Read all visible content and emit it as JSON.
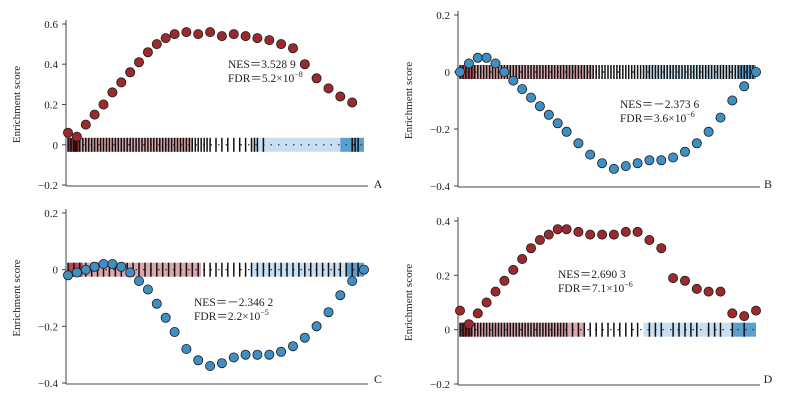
{
  "figure": {
    "panels": [
      {
        "panel_label": "A",
        "ylabel": "Enrichment score",
        "ylim": [
          -0.2,
          0.6
        ],
        "yticks": [
          -0.2,
          0,
          0.2,
          0.4,
          0.6
        ],
        "ytick_labels": [
          "−0.2",
          "0",
          "0.2",
          "0.4",
          "0.6"
        ],
        "nes_label": "NES＝3.528 9",
        "fdr_label": "FDR＝5.2×10",
        "fdr_exponent": "−8"
      },
      {
        "panel_label": "B",
        "ylabel": "Enrichment score",
        "ylim": [
          -0.4,
          0.2
        ],
        "yticks": [
          -0.4,
          -0.2,
          0,
          0.2
        ],
        "ytick_labels": [
          "−0.4",
          "−0.2",
          "0",
          "0.2"
        ],
        "nes_label": "NES＝－2.373 6",
        "fdr_label": "FDR＝3.6×10",
        "fdr_exponent": "−6"
      },
      {
        "panel_label": "C",
        "ylabel": "Enrichment score",
        "ylim": [
          -0.4,
          0.2
        ],
        "yticks": [
          -0.4,
          -0.2,
          0,
          0.2
        ],
        "ytick_labels": [
          "−0.4",
          "−0.2",
          "0",
          "0.2"
        ],
        "nes_label": "NES＝－2.346 2",
        "fdr_label": "FDR＝2.2×10",
        "fdr_exponent": "−5"
      },
      {
        "panel_label": "D",
        "ylabel": "Enrichment score",
        "ylim": [
          -0.2,
          0.4
        ],
        "yticks": [
          -0.2,
          0,
          0.2,
          0.4
        ],
        "ytick_labels": [
          "−0.2",
          "0",
          "0.2",
          "0.4"
        ],
        "nes_label": "NES＝2.690 3",
        "fdr_label": "FDR＝7.1×10",
        "fdr_exponent": "−6"
      }
    ]
  },
  "chart_data": [
    {
      "type": "scatter",
      "title": "",
      "xlabel": "",
      "ylabel": "Enrichment score",
      "ylim": [
        -0.2,
        0.6
      ],
      "x_range": [
        0,
        100
      ],
      "direction": "positive",
      "series": [
        {
          "name": "running enrichment score",
          "x": [
            0,
            3,
            6,
            9,
            12,
            15,
            18,
            21,
            24,
            27,
            30,
            33,
            36,
            40,
            44,
            48,
            52,
            56,
            60,
            64,
            68,
            72,
            76,
            80,
            84,
            88,
            92,
            96
          ],
          "y": [
            0.06,
            0.04,
            0.1,
            0.15,
            0.2,
            0.26,
            0.31,
            0.36,
            0.41,
            0.46,
            0.5,
            0.53,
            0.55,
            0.56,
            0.55,
            0.56,
            0.54,
            0.55,
            0.54,
            0.53,
            0.52,
            0.5,
            0.48,
            0.4,
            0.33,
            0.28,
            0.24,
            0.21
          ],
          "color": "#9b2a2c"
        }
      ],
      "hit_positions": [
        0,
        1,
        2,
        2.5,
        3,
        4,
        5,
        6,
        7,
        8,
        9,
        10,
        11,
        12,
        13,
        14,
        15,
        16,
        17,
        18,
        19,
        20,
        21,
        22,
        23,
        24,
        25,
        26,
        27,
        28,
        29,
        30,
        31,
        32,
        33,
        34,
        35,
        36,
        37,
        38,
        39,
        40,
        41,
        42,
        43,
        44,
        45,
        46,
        47,
        48,
        50,
        52,
        54,
        56,
        58,
        60,
        62,
        63,
        64,
        66,
        96,
        97,
        98
      ],
      "annotation": {
        "text": "NES＝3.528 9 / FDR＝5.2×10−8"
      }
    },
    {
      "type": "scatter",
      "title": "",
      "xlabel": "",
      "ylabel": "Enrichment score",
      "ylim": [
        -0.4,
        0.2
      ],
      "x_range": [
        0,
        100
      ],
      "direction": "negative",
      "series": [
        {
          "name": "running enrichment score",
          "x": [
            0,
            3,
            6,
            9,
            12,
            15,
            18,
            21,
            24,
            27,
            30,
            33,
            36,
            40,
            44,
            48,
            52,
            56,
            60,
            64,
            68,
            72,
            76,
            80,
            84,
            88,
            92,
            96,
            100
          ],
          "y": [
            0.0,
            0.03,
            0.05,
            0.05,
            0.03,
            0.0,
            -0.03,
            -0.06,
            -0.09,
            -0.12,
            -0.15,
            -0.18,
            -0.21,
            -0.25,
            -0.29,
            -0.32,
            -0.34,
            -0.33,
            -0.32,
            -0.31,
            -0.31,
            -0.3,
            -0.28,
            -0.25,
            -0.21,
            -0.16,
            -0.1,
            -0.05,
            0.0
          ],
          "color": "#3f8fc4"
        }
      ],
      "hit_positions": [
        0,
        1,
        2,
        3,
        4,
        5,
        6,
        7,
        8,
        9,
        10,
        11,
        12,
        13,
        14,
        15,
        16,
        17,
        18,
        19,
        20,
        21,
        22,
        23,
        24,
        25,
        26,
        27,
        28,
        29,
        30,
        31,
        32,
        33,
        34,
        35,
        36,
        37,
        38,
        39,
        40,
        41,
        42,
        43,
        44,
        45,
        46,
        47,
        48,
        49,
        50,
        51,
        52,
        53,
        54,
        55,
        56,
        57,
        58,
        59,
        60,
        61,
        62,
        63,
        64,
        65,
        66,
        67,
        68,
        69,
        70,
        71,
        72,
        73,
        74,
        75,
        76,
        77,
        78,
        79,
        80,
        81,
        82,
        83,
        84,
        85,
        86,
        87,
        88,
        89,
        90,
        91,
        92,
        93,
        94,
        95,
        96,
        97,
        98,
        99
      ],
      "annotation": {
        "text": "NES＝－2.373 6 / FDR＝3.6×10−6"
      }
    },
    {
      "type": "scatter",
      "title": "",
      "xlabel": "",
      "ylabel": "Enrichment score",
      "ylim": [
        -0.4,
        0.2
      ],
      "x_range": [
        0,
        100
      ],
      "direction": "negative",
      "series": [
        {
          "name": "running enrichment score",
          "x": [
            0,
            3,
            6,
            9,
            12,
            15,
            18,
            21,
            24,
            27,
            30,
            33,
            36,
            40,
            44,
            48,
            52,
            56,
            60,
            64,
            68,
            72,
            76,
            80,
            84,
            88,
            92,
            96,
            100
          ],
          "y": [
            -0.02,
            -0.01,
            0.0,
            0.01,
            0.02,
            0.02,
            0.01,
            -0.01,
            -0.04,
            -0.07,
            -0.12,
            -0.17,
            -0.22,
            -0.28,
            -0.32,
            -0.34,
            -0.33,
            -0.31,
            -0.3,
            -0.3,
            -0.3,
            -0.29,
            -0.27,
            -0.24,
            -0.2,
            -0.15,
            -0.09,
            -0.04,
            0.0
          ],
          "color": "#3f8fc4"
        }
      ],
      "hit_positions": [
        0,
        2,
        4,
        6,
        8,
        10,
        12,
        14,
        16,
        18,
        20,
        22,
        24,
        26,
        28,
        30,
        32,
        34,
        36,
        38,
        40,
        42,
        44,
        46,
        48,
        50,
        52,
        54,
        56,
        58,
        60,
        62,
        64,
        66,
        68,
        70,
        72,
        74,
        76,
        78,
        80,
        82,
        84,
        86,
        88,
        90,
        92,
        94,
        96,
        98
      ],
      "annotation": {
        "text": "NES＝－2.346 2 / FDR＝2.2×10−5"
      }
    },
    {
      "type": "scatter",
      "title": "",
      "xlabel": "",
      "ylabel": "Enrichment score",
      "ylim": [
        -0.2,
        0.4
      ],
      "x_range": [
        0,
        100
      ],
      "direction": "positive",
      "series": [
        {
          "name": "running enrichment score",
          "x": [
            0,
            3,
            6,
            9,
            12,
            15,
            18,
            21,
            24,
            27,
            30,
            33,
            36,
            40,
            44,
            48,
            52,
            56,
            60,
            64,
            68,
            72,
            76,
            80,
            84,
            88,
            92,
            96,
            100
          ],
          "y": [
            0.07,
            0.02,
            0.06,
            0.1,
            0.14,
            0.18,
            0.22,
            0.26,
            0.3,
            0.33,
            0.35,
            0.37,
            0.37,
            0.36,
            0.35,
            0.35,
            0.35,
            0.36,
            0.36,
            0.33,
            0.3,
            0.19,
            0.18,
            0.15,
            0.14,
            0.14,
            0.06,
            0.05,
            0.07
          ],
          "color": "#9b2a2c"
        }
      ],
      "hit_positions": [
        0,
        1,
        2,
        3,
        4,
        5,
        6,
        7,
        8,
        9,
        10,
        11,
        12,
        13,
        14,
        15,
        16,
        17,
        18,
        19,
        20,
        21,
        22,
        23,
        24,
        25,
        26,
        27,
        28,
        29,
        30,
        31,
        32,
        33,
        34,
        35,
        36,
        38,
        40,
        42,
        44,
        46,
        48,
        50,
        52,
        54,
        56,
        58,
        60,
        64,
        66,
        68,
        72,
        74,
        76,
        78,
        80,
        84,
        86,
        88,
        92,
        96
      ],
      "annotation": {
        "text": "NES＝2.690 3 / FDR＝7.1×10−6"
      }
    }
  ]
}
